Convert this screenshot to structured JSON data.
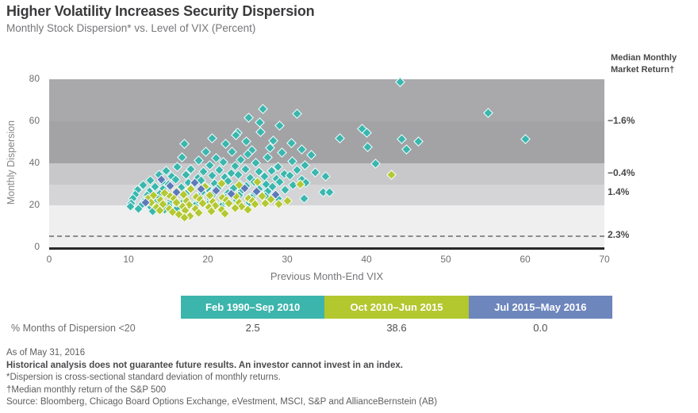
{
  "header": {
    "title": "Higher Volatility Increases Security Dispersion",
    "subtitle": "Monthly Stock Dispersion* vs. Level of VIX (Percent)"
  },
  "right_panel": {
    "heading": "Median Monthly Market Return†",
    "annotations": [
      {
        "text": "−1.6%",
        "at": 60
      },
      {
        "text": "−0.4%",
        "at": 35
      },
      {
        "text": "1.4%",
        "at": 26
      },
      {
        "text": "2.3%",
        "at": 5.7
      }
    ]
  },
  "chart_data": {
    "type": "scatter",
    "title": "Higher Volatility Increases Security Dispersion",
    "xlabel": "Previous Month-End VIX",
    "ylabel": "Monthly Dispersion",
    "xlim": [
      0,
      70
    ],
    "ylim": [
      0,
      80
    ],
    "xticks": [
      0,
      10,
      20,
      30,
      40,
      50,
      60,
      70
    ],
    "yticks": [
      0,
      20,
      40,
      60,
      80
    ],
    "grid": false,
    "dashed_line_y": 5.5,
    "bands": [
      {
        "from": 60,
        "to": 80,
        "color": "#a9a9ac"
      },
      {
        "from": 40,
        "to": 60,
        "color": "#a3a3a6"
      },
      {
        "from": 30,
        "to": 40,
        "color": "#c8c8cb"
      },
      {
        "from": 20,
        "to": 30,
        "color": "#d5d5d8"
      },
      {
        "from": 0,
        "to": 20,
        "color": "#efeff0"
      }
    ],
    "series": [
      {
        "name": "Feb 1990–Sep 2010",
        "color": "#3ab7ae",
        "points": [
          [
            44.3,
            78.5
          ],
          [
            27,
            65.8
          ],
          [
            31.3,
            63.5
          ],
          [
            55.4,
            63.8
          ],
          [
            25.2,
            61.5
          ],
          [
            26.6,
            59.2
          ],
          [
            29.1,
            57.6
          ],
          [
            23.8,
            54.3
          ],
          [
            26.7,
            54.8
          ],
          [
            39.5,
            56.2
          ],
          [
            40.1,
            54.2
          ],
          [
            23.6,
            53.3
          ],
          [
            20.6,
            51.8
          ],
          [
            36.7,
            51.7
          ],
          [
            44.5,
            51.4
          ],
          [
            46.6,
            50.2
          ],
          [
            60.1,
            51.3
          ],
          [
            45.1,
            46.4
          ],
          [
            40.2,
            47.5
          ],
          [
            17.1,
            49.2
          ],
          [
            22.3,
            49.2
          ],
          [
            24.9,
            50.1
          ],
          [
            28.3,
            50.6
          ],
          [
            30.6,
            49.3
          ],
          [
            27.9,
            47.3
          ],
          [
            25.6,
            46.1
          ],
          [
            23.1,
            45.1
          ],
          [
            19.8,
            45.3
          ],
          [
            21.1,
            42.3
          ],
          [
            25.1,
            44.2
          ],
          [
            29.4,
            44.9
          ],
          [
            31.9,
            46.6
          ],
          [
            33.1,
            43.6
          ],
          [
            41.2,
            39.8
          ],
          [
            27.6,
            42.8
          ],
          [
            24.2,
            41.4
          ],
          [
            22,
            40.2
          ],
          [
            18.9,
            41.1
          ],
          [
            16.8,
            42.6
          ],
          [
            20.3,
            38.8
          ],
          [
            23.5,
            38.4
          ],
          [
            26.1,
            39.9
          ],
          [
            28.9,
            38.3
          ],
          [
            30.7,
            40.7
          ],
          [
            32.3,
            38.9
          ],
          [
            16.2,
            38.1
          ],
          [
            14.8,
            36.4
          ],
          [
            17.9,
            36.9
          ],
          [
            19.5,
            35.8
          ],
          [
            21.5,
            36.7
          ],
          [
            23,
            35.1
          ],
          [
            24.8,
            37
          ],
          [
            26.5,
            35.7
          ],
          [
            28.1,
            36.3
          ],
          [
            29.7,
            34.9
          ],
          [
            31.3,
            36.5
          ],
          [
            33.6,
            35.3
          ],
          [
            34.9,
            33.4
          ],
          [
            13.9,
            34.3
          ],
          [
            15.5,
            33.5
          ],
          [
            17.3,
            34.5
          ],
          [
            18.8,
            32.9
          ],
          [
            20.6,
            34.1
          ],
          [
            22.2,
            33.2
          ],
          [
            23.9,
            34.2
          ],
          [
            25.4,
            32.7
          ],
          [
            27.2,
            33.7
          ],
          [
            28.7,
            32.4
          ],
          [
            30.4,
            34
          ],
          [
            31.9,
            32.1
          ],
          [
            12.8,
            31.8
          ],
          [
            14.3,
            31.1
          ],
          [
            16,
            31.9
          ],
          [
            17.6,
            30.6
          ],
          [
            19.2,
            31.6
          ],
          [
            20.9,
            30.3
          ],
          [
            22.6,
            31.3
          ],
          [
            24.1,
            30
          ],
          [
            25.9,
            31.1
          ],
          [
            27.4,
            29.8
          ],
          [
            29.1,
            30.9
          ],
          [
            30.8,
            29.5
          ],
          [
            32.4,
            30.6
          ],
          [
            11.9,
            29.4
          ],
          [
            13.4,
            28.8
          ],
          [
            15.1,
            29.8
          ],
          [
            16.7,
            28.4
          ],
          [
            18.3,
            29.4
          ],
          [
            20,
            28.1
          ],
          [
            21.6,
            29.1
          ],
          [
            23.3,
            27.8
          ],
          [
            24.9,
            28.9
          ],
          [
            26.5,
            27.6
          ],
          [
            28.2,
            28.7
          ],
          [
            29.8,
            27.3
          ],
          [
            34.6,
            26
          ],
          [
            35.4,
            26.2
          ],
          [
            11.2,
            27.2
          ],
          [
            12.7,
            26.6
          ],
          [
            14.4,
            27.6
          ],
          [
            16.1,
            26.2
          ],
          [
            17.7,
            27.2
          ],
          [
            19.3,
            25.9
          ],
          [
            21,
            27
          ],
          [
            22.6,
            25.6
          ],
          [
            24.3,
            26.7
          ],
          [
            25.9,
            25.4
          ],
          [
            27.6,
            26.5
          ],
          [
            32.2,
            23.1
          ],
          [
            10.9,
            25
          ],
          [
            12.4,
            24.5
          ],
          [
            14,
            25.4
          ],
          [
            15.7,
            24.1
          ],
          [
            17.3,
            25.1
          ],
          [
            19,
            23.8
          ],
          [
            20.7,
            24.8
          ],
          [
            22.3,
            23.5
          ],
          [
            24,
            24.6
          ],
          [
            25.6,
            23.3
          ],
          [
            27.3,
            24.3
          ],
          [
            28.9,
            23.1
          ],
          [
            10.6,
            22.9
          ],
          [
            12.1,
            22.3
          ],
          [
            13.8,
            23.2
          ],
          [
            15.4,
            21.8
          ],
          [
            17.1,
            22.8
          ],
          [
            18.7,
            21.6
          ],
          [
            20.4,
            22.6
          ],
          [
            22,
            21.3
          ],
          [
            23.7,
            22.4
          ],
          [
            25.3,
            21.1
          ],
          [
            10.4,
            20.7
          ],
          [
            11.8,
            20.2
          ],
          [
            13.5,
            21.1
          ],
          [
            15.1,
            19.8
          ],
          [
            16.8,
            20.7
          ],
          [
            18.4,
            19.5
          ],
          [
            20.1,
            20.5
          ],
          [
            21.7,
            19.3
          ],
          [
            10.3,
            19.2
          ],
          [
            11.3,
            18.1
          ],
          [
            12.9,
            18.8
          ],
          [
            14.6,
            17.8
          ],
          [
            16.2,
            18.5
          ],
          [
            13.1,
            16.9
          ]
        ]
      },
      {
        "name": "Oct 2010–Jun 2015",
        "color": "#b3c832",
        "points": [
          [
            43.2,
            34.3
          ],
          [
            31.7,
            29.8
          ],
          [
            26.3,
            30.9
          ],
          [
            24,
            29.4
          ],
          [
            21.8,
            30.1
          ],
          [
            19.7,
            28.6
          ],
          [
            17.9,
            27.5
          ],
          [
            16.1,
            26.7
          ],
          [
            14.6,
            25.8
          ],
          [
            13.2,
            24.7
          ],
          [
            15.3,
            24
          ],
          [
            17,
            24.8
          ],
          [
            18.6,
            23.7
          ],
          [
            20.3,
            24.5
          ],
          [
            21.9,
            23.4
          ],
          [
            23.6,
            24.3
          ],
          [
            25.2,
            23.2
          ],
          [
            26.9,
            24
          ],
          [
            28,
            22.6
          ],
          [
            30.1,
            21.9
          ],
          [
            12.5,
            23.1
          ],
          [
            14.1,
            22.1
          ],
          [
            15.8,
            22.9
          ],
          [
            17.4,
            21.7
          ],
          [
            19.1,
            22.5
          ],
          [
            20.7,
            21.4
          ],
          [
            22.4,
            22.3
          ],
          [
            24,
            21.2
          ],
          [
            25.7,
            22
          ],
          [
            27.3,
            20.9
          ],
          [
            29,
            20.4
          ],
          [
            12.9,
            21
          ],
          [
            14.4,
            20.3
          ],
          [
            16.1,
            21.1
          ],
          [
            17.7,
            20
          ],
          [
            19.4,
            20.8
          ],
          [
            21,
            19.7
          ],
          [
            22.7,
            20.6
          ],
          [
            24.3,
            19.4
          ],
          [
            26,
            20.2
          ],
          [
            13.6,
            18.9
          ],
          [
            15.2,
            18.3
          ],
          [
            16.9,
            19.1
          ],
          [
            18.5,
            18
          ],
          [
            20.2,
            18.8
          ],
          [
            21.8,
            17.7
          ],
          [
            23.5,
            18.6
          ],
          [
            25.1,
            17.9
          ],
          [
            14,
            17.2
          ],
          [
            15.6,
            16.6
          ],
          [
            17.2,
            17.4
          ],
          [
            18.9,
            16.3
          ],
          [
            20.5,
            17.1
          ],
          [
            22.2,
            16
          ],
          [
            16.4,
            15.5
          ],
          [
            17.8,
            14.8
          ],
          [
            17.1,
            13.9
          ]
        ]
      },
      {
        "name": "Jul 2015–May 2016",
        "color": "#5e7ab8",
        "points": [
          [
            14.2,
            32
          ],
          [
            18.4,
            30.5
          ],
          [
            15.3,
            29
          ],
          [
            16.1,
            26
          ],
          [
            21.1,
            26.8
          ],
          [
            24.7,
            27.9
          ],
          [
            28.6,
            24.9
          ],
          [
            12.2,
            21.2
          ],
          [
            19.2,
            27.6
          ],
          [
            23,
            25.3
          ],
          [
            26.2,
            26.3
          ]
        ]
      }
    ]
  },
  "legend": {
    "row_label": "% Months of Dispersion <20",
    "segments": [
      {
        "label": "Feb 1990–Sep 2010",
        "color": "#3cb5ac",
        "value": "2.5"
      },
      {
        "label": "Oct 2010–Jun 2015",
        "color": "#b3c72f",
        "value": "38.6"
      },
      {
        "label": "Jul 2015–May 2016",
        "color": "#6d86bc",
        "value": "0.0"
      }
    ]
  },
  "footnotes": [
    {
      "text": "As of May 31, 2016",
      "bold": false
    },
    {
      "text": "Historical analysis does not guarantee future results. An investor cannot invest in an index.",
      "bold": true
    },
    {
      "text": "*Dispersion is cross-sectional standard deviation of monthly returns.",
      "bold": false
    },
    {
      "text": "†Median monthly return of the S&P 500",
      "bold": false
    },
    {
      "text": "Source: Bloomberg, Chicago Board Options Exchange, eVestment, MSCI, S&P and AllianceBernstein (AB)",
      "bold": false
    }
  ]
}
